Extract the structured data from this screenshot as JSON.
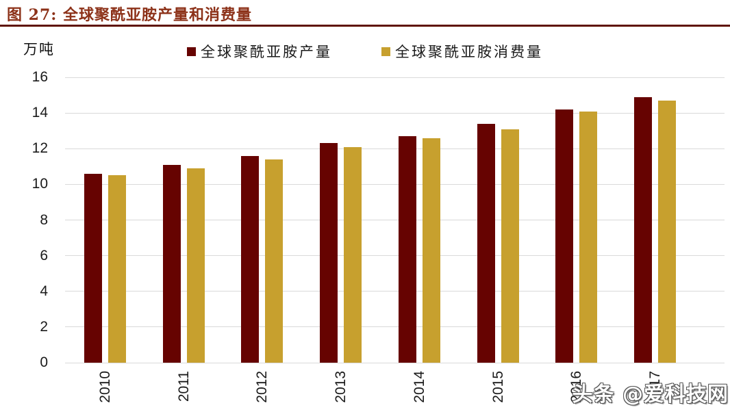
{
  "header": {
    "title": "图 27:  全球聚酰亚胺产量和消费量"
  },
  "watermark": "头条 @爱科技网",
  "colors": {
    "title_text": "#8C3118",
    "title_rule": "#5E1200",
    "production_bar": "#660301",
    "consumption_bar": "#C7A02E",
    "gridline": "#D9D9D9",
    "axis_text": "#1A1A1A",
    "watermark_fill": "#FFFFFF"
  },
  "chart_data": {
    "type": "bar",
    "title": "全球聚酰亚胺产量和消费量",
    "unit_label": "万吨",
    "xlabel": "",
    "ylabel": "万吨",
    "categories": [
      "2010",
      "2011",
      "2012",
      "2013",
      "2014",
      "2015",
      "2016",
      "2017"
    ],
    "series": [
      {
        "name": "全球聚酰亚胺产量",
        "color": "#660301",
        "values": [
          10.6,
          11.1,
          11.6,
          12.3,
          12.7,
          13.4,
          14.2,
          14.9
        ]
      },
      {
        "name": "全球聚酰亚胺消费量",
        "color": "#C7A02E",
        "values": [
          10.5,
          10.9,
          11.4,
          12.1,
          12.6,
          13.1,
          14.1,
          14.7
        ]
      }
    ],
    "ylim": [
      0,
      16
    ],
    "yticks": [
      0,
      2,
      4,
      6,
      8,
      10,
      12,
      14,
      16
    ],
    "grid": true,
    "legend_position": "top-center",
    "x_tick_rotation_deg": 90
  }
}
